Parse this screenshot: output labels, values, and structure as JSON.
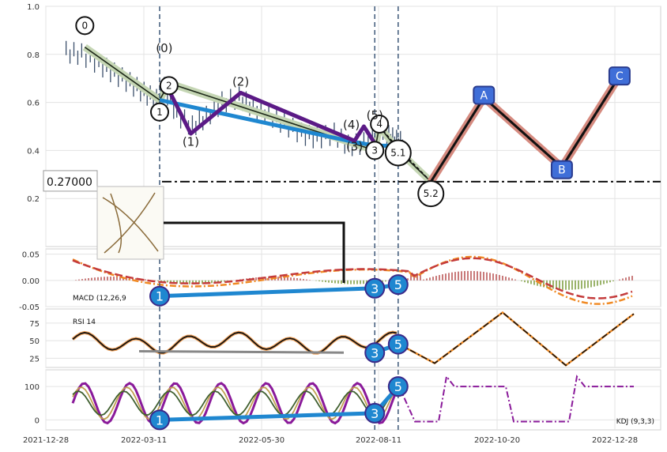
{
  "chart_data": [
    {
      "type": "line",
      "panel": "price",
      "ylim": [
        0.0,
        1.0
      ],
      "y_ticks": [
        "0.2",
        "0.4",
        "0.6",
        "0.8",
        "1.0"
      ],
      "x_ticks": [
        "2021-12-28",
        "2022-03-11",
        "2022-05-30",
        "2022-08-11",
        "2022-10-20",
        "2022-12-28"
      ],
      "grid": true,
      "price_series": {
        "x": [
          "2022-01-10",
          "2022-01-20",
          "2022-01-31",
          "2022-02-10",
          "2022-02-20",
          "2022-03-01",
          "2022-03-09",
          "2022-03-14",
          "2022-03-22",
          "2022-04-01",
          "2022-04-10",
          "2022-04-20",
          "2022-05-01",
          "2022-05-10",
          "2022-05-20",
          "2022-05-30",
          "2022-06-10",
          "2022-06-20",
          "2022-07-01",
          "2022-07-10",
          "2022-07-20",
          "2022-07-31",
          "2022-08-05",
          "2022-08-10",
          "2022-08-15"
        ],
        "y": [
          0.81,
          0.8,
          0.76,
          0.72,
          0.68,
          0.64,
          0.61,
          0.66,
          0.55,
          0.5,
          0.54,
          0.6,
          0.62,
          0.58,
          0.55,
          0.51,
          0.47,
          0.45,
          0.47,
          0.42,
          0.43,
          0.5,
          0.46,
          0.44,
          0.43
        ]
      },
      "horizontal_line": {
        "y": 0.27,
        "label": "0.27000",
        "style": "dash-dot"
      },
      "vertical_lines": [
        "2022-03-11",
        "2022-07-27",
        "2022-08-11"
      ],
      "wave_labels": [
        {
          "text": "0",
          "x": "2022-01-22",
          "y": 0.92,
          "circled": true
        },
        {
          "text": "(0)",
          "x": "2022-03-14",
          "y": 0.81,
          "circled": false
        },
        {
          "text": "2",
          "x": "2022-03-17",
          "y": 0.67,
          "circled": true
        },
        {
          "text": "1",
          "x": "2022-03-11",
          "y": 0.56,
          "circled": true
        },
        {
          "text": "(1)",
          "x": "2022-03-31",
          "y": 0.42,
          "circled": false
        },
        {
          "text": "(2)",
          "x": "2022-05-02",
          "y": 0.67,
          "circled": false
        },
        {
          "text": "(4)",
          "x": "2022-07-12",
          "y": 0.49,
          "circled": false
        },
        {
          "text": "(5)",
          "x": "2022-07-27",
          "y": 0.53,
          "circled": false
        },
        {
          "text": "4",
          "x": "2022-07-30",
          "y": 0.51,
          "circled": true
        },
        {
          "text": "(3)",
          "x": "2022-07-14",
          "y": 0.4,
          "circled": false
        },
        {
          "text": "3",
          "x": "2022-07-27",
          "y": 0.4,
          "circled": true
        },
        {
          "text": "5.1",
          "x": "2022-08-11",
          "y": 0.39,
          "circled": true
        },
        {
          "text": "5.2",
          "x": "2022-09-01",
          "y": 0.22,
          "circled": true
        }
      ],
      "abc_labels": [
        {
          "text": "A",
          "x": "2022-10-05",
          "y": 0.63
        },
        {
          "text": "B",
          "x": "2022-11-24",
          "y": 0.32
        },
        {
          "text": "C",
          "x": "2022-12-31",
          "y": 0.71
        }
      ],
      "price_box_label": "0.27000"
    },
    {
      "type": "line",
      "panel": "macd",
      "label": "MACD (12,26,9",
      "ylim": [
        -0.05,
        0.06
      ],
      "y_ticks": [
        "0.05",
        "0.00",
        "-0.05"
      ],
      "pivots": [
        {
          "text": "1",
          "x": "2022-03-11",
          "y": -0.03
        },
        {
          "text": "3",
          "x": "2022-07-27",
          "y": -0.015
        },
        {
          "text": "5",
          "x": "2022-08-11",
          "y": -0.008
        }
      ]
    },
    {
      "type": "line",
      "panel": "rsi",
      "label": "RSI 14",
      "ylim": [
        12,
        95
      ],
      "y_ticks": [
        "75",
        "50",
        "25"
      ],
      "pivots": [
        {
          "text": "3",
          "x": "2022-07-27",
          "y": 33
        },
        {
          "text": "5",
          "x": "2022-08-11",
          "y": 45
        }
      ]
    },
    {
      "type": "line",
      "panel": "kdj",
      "label": "KDJ (9,3,3)",
      "ylim": [
        -30,
        150
      ],
      "y_ticks": [
        "100",
        "0"
      ],
      "pivots": [
        {
          "text": "1",
          "x": "2022-03-11",
          "y": 0
        },
        {
          "text": "3",
          "x": "2022-07-27",
          "y": 20
        },
        {
          "text": "5",
          "x": "2022-08-11",
          "y": 100
        }
      ]
    }
  ]
}
